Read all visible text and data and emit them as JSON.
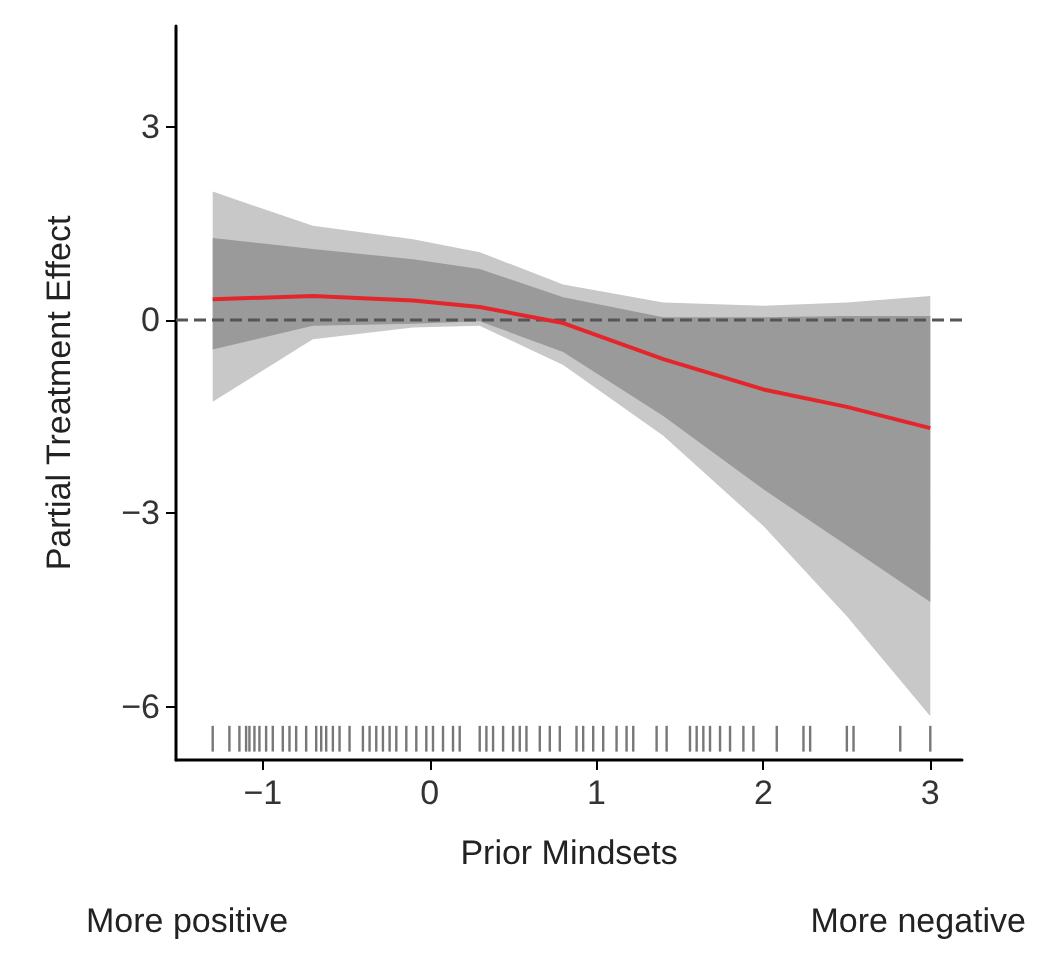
{
  "chart_data": {
    "type": "line",
    "xlabel": "Prior Mindsets",
    "ylabel": "Partial Treatment Effect",
    "annotations": [
      "More positive",
      "More negative"
    ],
    "x": [
      -1.3,
      -0.7,
      -0.1,
      0.3,
      0.8,
      1.4,
      2,
      2.5,
      3
    ],
    "xlim": [
      -1.52,
      3.19
    ],
    "xticks": [
      -1,
      0,
      1,
      2,
      3
    ],
    "ylim": [
      -6.83,
      4.56
    ],
    "yticks": [
      -6,
      -3,
      0,
      3
    ],
    "grid": false,
    "marker": "none",
    "ref_lines": [
      {
        "axis": "y",
        "value": 0,
        "color": "#555555",
        "line_style": "dashed"
      }
    ],
    "series": [
      {
        "color": "#c8c8c8",
        "values": [
          null,
          null,
          null,
          null,
          null,
          null,
          null,
          null,
          null
        ],
        "lower": [
          -1.27,
          -0.3,
          -0.12,
          -0.09,
          -0.7,
          -1.8,
          -3.2,
          -4.6,
          -6.15
        ],
        "upper": [
          1.99,
          1.46,
          1.25,
          1.05,
          0.55,
          0.27,
          0.22,
          0.27,
          0.37
        ]
      },
      {
        "color": "#9a9a9a",
        "values": [
          null,
          null,
          null,
          null,
          null,
          null,
          null,
          null,
          null
        ],
        "lower": [
          -0.46,
          -0.09,
          -0.06,
          -0.02,
          -0.5,
          -1.49,
          -2.63,
          -3.5,
          -4.38
        ],
        "upper": [
          1.27,
          1.1,
          0.94,
          0.79,
          0.35,
          0.04,
          0.04,
          0.06,
          0.06
        ]
      },
      {
        "color": "#e3262b",
        "values": [
          0.32,
          0.37,
          0.3,
          0.2,
          -0.05,
          -0.61,
          -1.08,
          -1.35,
          -1.68
        ]
      },
      {
        "type": "bar",
        "color": "#555555",
        "base": [
          -6.7,
          -6.7,
          -6.7,
          -6.7,
          -6.7,
          -6.7,
          -6.7,
          -6.7,
          -6.7,
          -6.7,
          -6.7,
          -6.7,
          -6.7,
          -6.7,
          -6.7,
          -6.7,
          -6.7,
          -6.7,
          -6.7,
          -6.7,
          -6.7,
          -6.7,
          -6.7,
          -6.7,
          -6.7,
          -6.7,
          -6.7,
          -6.7,
          -6.7,
          -6.7,
          -6.7,
          -6.7,
          -6.7,
          -6.7,
          -6.7,
          -6.7,
          -6.7,
          -6.7,
          -6.7,
          -6.7,
          -6.7,
          -6.7,
          -6.7,
          -6.7,
          -6.7,
          -6.7,
          -6.7,
          -6.7,
          -6.7,
          -6.7,
          -6.7,
          -6.7,
          -6.7,
          -6.7,
          -6.7,
          -6.7,
          -6.7,
          -6.7,
          -6.7,
          -6.7,
          -6.7,
          -6.7,
          -6.7,
          -6.7,
          -6.7,
          -6.7
        ],
        "x": [
          -1.3,
          -1.2,
          -1.14,
          -1.1,
          -1.08,
          -1.05,
          -1.02,
          -0.98,
          -0.94,
          -0.88,
          -0.84,
          -0.8,
          -0.74,
          -0.68,
          -0.65,
          -0.62,
          -0.58,
          -0.54,
          -0.48,
          -0.4,
          -0.36,
          -0.32,
          -0.28,
          -0.24,
          -0.2,
          -0.14,
          -0.08,
          -0.02,
          0.02,
          0.08,
          0.14,
          0.18,
          0.3,
          0.34,
          0.38,
          0.44,
          0.5,
          0.54,
          0.58,
          0.66,
          0.72,
          0.78,
          0.88,
          0.92,
          0.98,
          1.04,
          1.12,
          1.18,
          1.22,
          1.36,
          1.42,
          1.56,
          1.6,
          1.64,
          1.68,
          1.74,
          1.8,
          1.88,
          1.94,
          2.08,
          2.24,
          2.28,
          2.5,
          2.54,
          2.82,
          3
        ],
        "values": [
          0.4,
          0.4,
          0.4,
          0.4,
          0.4,
          0.4,
          0.4,
          0.4,
          0.4,
          0.4,
          0.4,
          0.4,
          0.4,
          0.4,
          0.4,
          0.4,
          0.4,
          0.4,
          0.4,
          0.4,
          0.4,
          0.4,
          0.4,
          0.4,
          0.4,
          0.4,
          0.4,
          0.4,
          0.4,
          0.4,
          0.4,
          0.4,
          0.4,
          0.4,
          0.4,
          0.4,
          0.4,
          0.4,
          0.4,
          0.4,
          0.4,
          0.4,
          0.4,
          0.4,
          0.4,
          0.4,
          0.4,
          0.4,
          0.4,
          0.4,
          0.4,
          0.4,
          0.4,
          0.4,
          0.4,
          0.4,
          0.4,
          0.4,
          0.4,
          0.4,
          0.4,
          0.4,
          0.4,
          0.4,
          0.4,
          0.4
        ]
      }
    ]
  }
}
